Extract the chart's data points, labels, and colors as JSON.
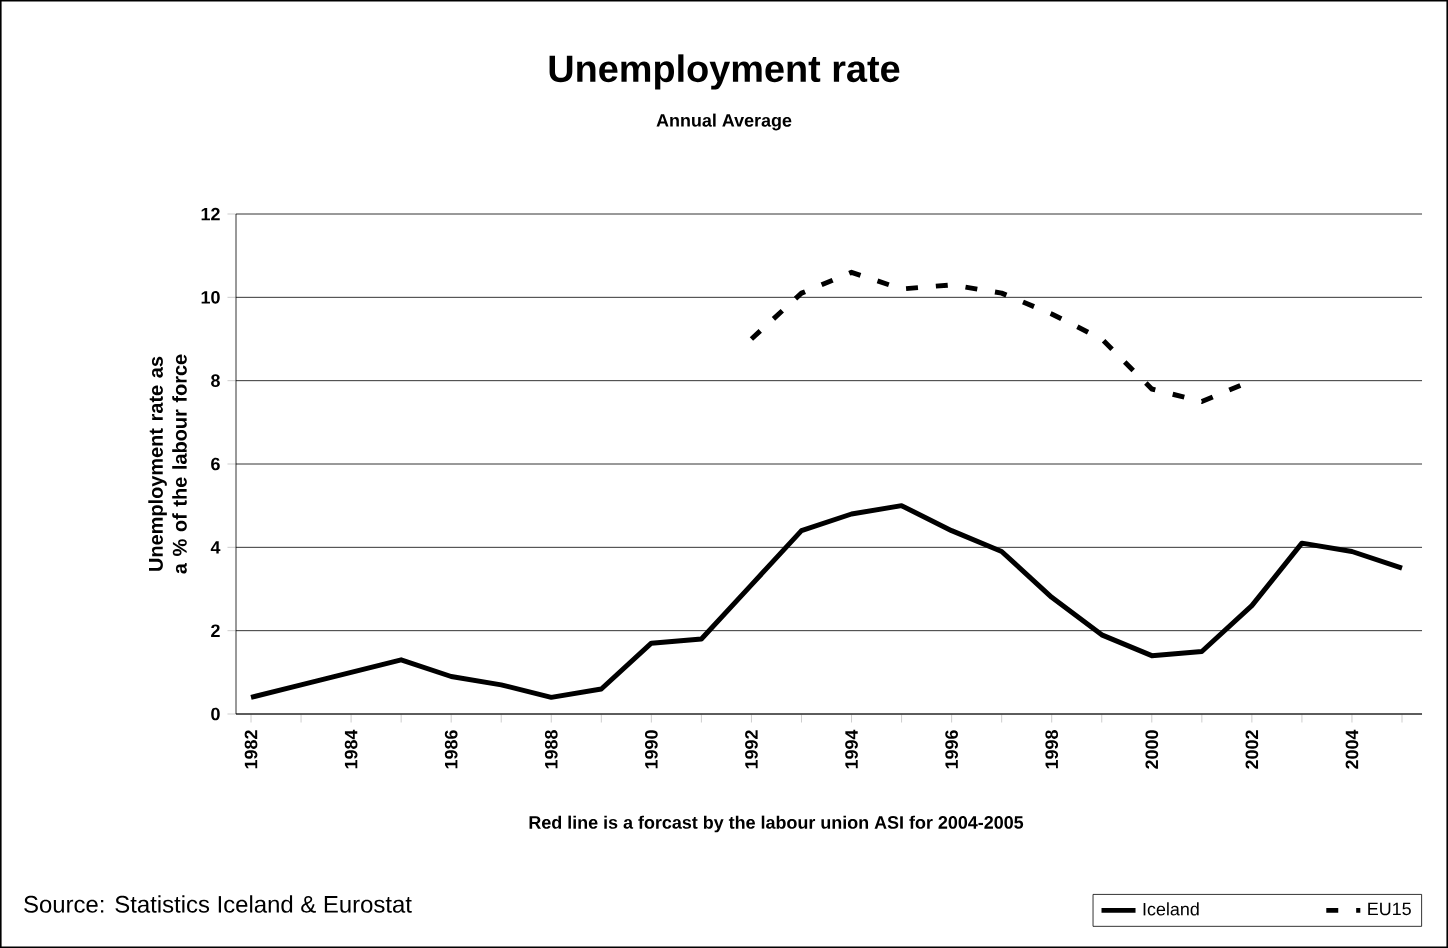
{
  "chart_data": {
    "type": "line",
    "title": "Unemployment rate",
    "subtitle": "Annual Average",
    "ylabel": "Unemployment rate as a % of the labour force",
    "categories": [
      "1982",
      null,
      "1984",
      null,
      "1986",
      null,
      "1988",
      null,
      "1990",
      null,
      "1992",
      null,
      "1994",
      null,
      "1996",
      null,
      "1998",
      null,
      "2000",
      null,
      "2002",
      null,
      "2004",
      null
    ],
    "series": [
      {
        "name": "Iceland",
        "color": "#000000",
        "line_style": "solid",
        "values": [
          0.4,
          0.7,
          1.0,
          1.3,
          0.9,
          0.7,
          0.4,
          0.6,
          1.7,
          1.8,
          3.1,
          4.4,
          4.8,
          5.0,
          4.4,
          3.9,
          2.8,
          1.9,
          1.4,
          1.5,
          2.6,
          4.1,
          3.9,
          3.5
        ]
      },
      {
        "name": "EU15",
        "color": "#000000",
        "line_style": "dashed",
        "values": [
          null,
          null,
          null,
          null,
          null,
          null,
          null,
          null,
          null,
          null,
          9.0,
          10.1,
          10.6,
          10.2,
          10.3,
          10.1,
          9.6,
          9.0,
          7.8,
          7.5,
          8.0,
          null,
          null,
          null
        ]
      }
    ],
    "ylim": [
      0,
      12
    ],
    "yticks": [
      0,
      2,
      4,
      6,
      8,
      10,
      12
    ],
    "grid": "y",
    "legend": "bottom right",
    "annotations": [
      "Red line is a forcast by the labour union ASI for 2004-2005",
      "Source: Statistics Iceland & Eurostat"
    ]
  }
}
